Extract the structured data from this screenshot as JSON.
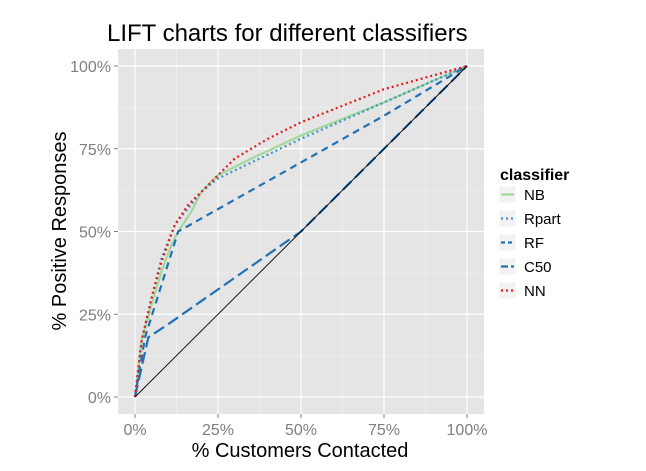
{
  "chart_data": {
    "type": "line",
    "title": "LIFT charts for different classifiers",
    "xlabel": "% Customers Contacted",
    "ylabel": "% Positive Responses",
    "xlim": [
      0,
      1
    ],
    "ylim": [
      0,
      1
    ],
    "x_ticks": [
      0,
      0.25,
      0.5,
      0.75,
      1
    ],
    "y_ticks": [
      0,
      0.25,
      0.5,
      0.75,
      1
    ],
    "x_tick_labels": [
      "0%",
      "25%",
      "50%",
      "75%",
      "100%"
    ],
    "y_tick_labels": [
      "0%",
      "25%",
      "50%",
      "75%",
      "100%"
    ],
    "grid": true,
    "legend_position": "right",
    "legend_title": "classifier",
    "series": [
      {
        "name": "NB",
        "color": "#a1d99b",
        "dash": "solid",
        "points": [
          [
            0,
            0
          ],
          [
            0.02,
            0.17
          ],
          [
            0.05,
            0.28
          ],
          [
            0.08,
            0.38
          ],
          [
            0.11,
            0.46
          ],
          [
            0.13,
            0.5
          ],
          [
            0.17,
            0.56
          ],
          [
            0.2,
            0.62
          ],
          [
            0.25,
            0.67
          ],
          [
            0.35,
            0.72
          ],
          [
            0.5,
            0.79
          ],
          [
            0.75,
            0.89
          ],
          [
            1,
            1
          ]
        ]
      },
      {
        "name": "Rpart",
        "color": "#4292c6",
        "dash": "dotted",
        "points": [
          [
            0,
            0
          ],
          [
            0.02,
            0.17
          ],
          [
            0.05,
            0.3
          ],
          [
            0.08,
            0.42
          ],
          [
            0.12,
            0.52
          ],
          [
            0.16,
            0.57
          ],
          [
            0.2,
            0.62
          ],
          [
            0.25,
            0.66
          ],
          [
            0.5,
            0.78
          ],
          [
            0.75,
            0.89
          ],
          [
            1,
            1
          ]
        ]
      },
      {
        "name": "RF",
        "color": "#2171b5",
        "dash": "dashed",
        "points": [
          [
            0,
            0
          ],
          [
            0.03,
            0.18
          ],
          [
            0.13,
            0.5
          ],
          [
            0.75,
            0.85
          ],
          [
            1,
            1
          ]
        ]
      },
      {
        "name": "C50",
        "color": "#2171b5",
        "dash": "longdash",
        "points": [
          [
            0,
            0
          ],
          [
            0.04,
            0.18
          ],
          [
            0.1,
            0.22
          ],
          [
            0.5,
            0.5
          ],
          [
            0.75,
            0.75
          ],
          [
            1,
            1
          ]
        ]
      },
      {
        "name": "NN",
        "color": "#e31a1c",
        "dash": "dotted",
        "points": [
          [
            0,
            0
          ],
          [
            0.02,
            0.17
          ],
          [
            0.05,
            0.3
          ],
          [
            0.08,
            0.41
          ],
          [
            0.12,
            0.52
          ],
          [
            0.16,
            0.58
          ],
          [
            0.22,
            0.64
          ],
          [
            0.3,
            0.72
          ],
          [
            0.4,
            0.78
          ],
          [
            0.5,
            0.83
          ],
          [
            0.75,
            0.93
          ],
          [
            1,
            1
          ]
        ]
      },
      {
        "name": "",
        "color": "#000000",
        "dash": "solid",
        "thin": true,
        "points": [
          [
            0,
            0
          ],
          [
            1,
            1
          ]
        ]
      }
    ]
  }
}
